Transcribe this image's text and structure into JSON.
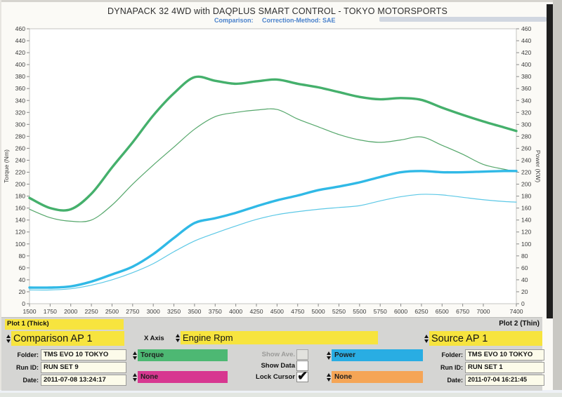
{
  "header": {
    "title": "DYNAPACK 32 4WD with DAQPLUS SMART CONTROL - TOKYO MOTORSPORTS",
    "comparison_label": "Comparison:",
    "correction_label": "Correction-Method: SAE"
  },
  "chart_data": {
    "type": "line",
    "ylabel_left": "Torque (Nm)",
    "ylabel_right": "Power (KW)",
    "ylim": [
      0,
      460
    ],
    "ytick_step": 20,
    "xlim": [
      1500,
      7400
    ],
    "xticks": [
      1500,
      1750,
      2000,
      2250,
      2500,
      2750,
      3000,
      3250,
      3500,
      3750,
      4000,
      4250,
      4500,
      4750,
      5000,
      5250,
      5500,
      5750,
      6000,
      6250,
      6500,
      6750,
      7000,
      7400
    ],
    "x": [
      1500,
      1750,
      2000,
      2250,
      2500,
      2750,
      3000,
      3250,
      3500,
      3750,
      4000,
      4250,
      4500,
      4750,
      5000,
      5250,
      5500,
      5750,
      6000,
      6250,
      6500,
      6750,
      7000,
      7250,
      7400
    ],
    "series": [
      {
        "name": "plot1-torque-thick",
        "color": "#45b06c",
        "width": 3.4,
        "values": [
          177,
          160,
          158,
          184,
          228,
          270,
          315,
          352,
          379,
          373,
          368,
          372,
          375,
          368,
          362,
          354,
          346,
          342,
          344,
          341,
          328,
          316,
          305,
          295,
          289
        ]
      },
      {
        "name": "plot2-torque-thin",
        "color": "#55a76b",
        "width": 1.2,
        "values": [
          158,
          144,
          138,
          140,
          165,
          200,
          232,
          262,
          292,
          313,
          320,
          324,
          325,
          309,
          296,
          283,
          274,
          270,
          274,
          279,
          265,
          250,
          233,
          225,
          221
        ]
      },
      {
        "name": "plot1-power-thick",
        "color": "#30b9e6",
        "width": 3.4,
        "values": [
          27,
          27,
          29,
          37,
          49,
          62,
          83,
          110,
          135,
          143,
          152,
          163,
          173,
          181,
          190,
          196,
          203,
          212,
          220,
          222,
          220,
          220,
          221,
          222,
          222
        ]
      },
      {
        "name": "plot2-power-thin",
        "color": "#5cc8e6",
        "width": 1.2,
        "values": [
          23,
          23,
          25,
          31,
          40,
          52,
          67,
          87,
          105,
          118,
          130,
          141,
          149,
          154,
          158,
          161,
          164,
          172,
          179,
          183,
          182,
          178,
          174,
          171,
          170
        ]
      }
    ],
    "grid": false,
    "legend_position": "none"
  },
  "plot1": {
    "header": "Plot 1 (Thick)",
    "selector": "Comparison AP 1",
    "folder_label": "Folder:",
    "folder": "TMS EVO 10 TOKYO",
    "run_id_label": "Run ID:",
    "run_id": "RUN SET 9",
    "date_label": "Date:",
    "date": "2011-07-08 13:24:17",
    "channel1": "Torque",
    "channel2": "None"
  },
  "plot2": {
    "header": "Plot 2 (Thin)",
    "selector": "Source AP 1",
    "folder_label": "Folder:",
    "folder": "TMS EVO 10 TOKYO",
    "run_id_label": "Run ID:",
    "run_id": "RUN SET 1",
    "date_label": "Date:",
    "date": "2011-07-04 16:21:45",
    "channel1": "Power",
    "channel2": "None"
  },
  "controls": {
    "x_axis_label": "X Axis",
    "x_axis_value": "Engine Rpm",
    "show_ave": "Show Ave.",
    "show_data": "Show Data",
    "lock_cursor": "Lock Cursor",
    "show_ave_checked": false,
    "show_data_checked": false,
    "lock_cursor_checked": true,
    "check_icon": "✔"
  },
  "colors": {
    "accent_yellow": "#f7e43e",
    "torque_green": "#4db873",
    "power_blue": "#29ade3",
    "magenta": "#d73790",
    "orange": "#f5a556",
    "panel_gray": "#d5d5d3"
  }
}
